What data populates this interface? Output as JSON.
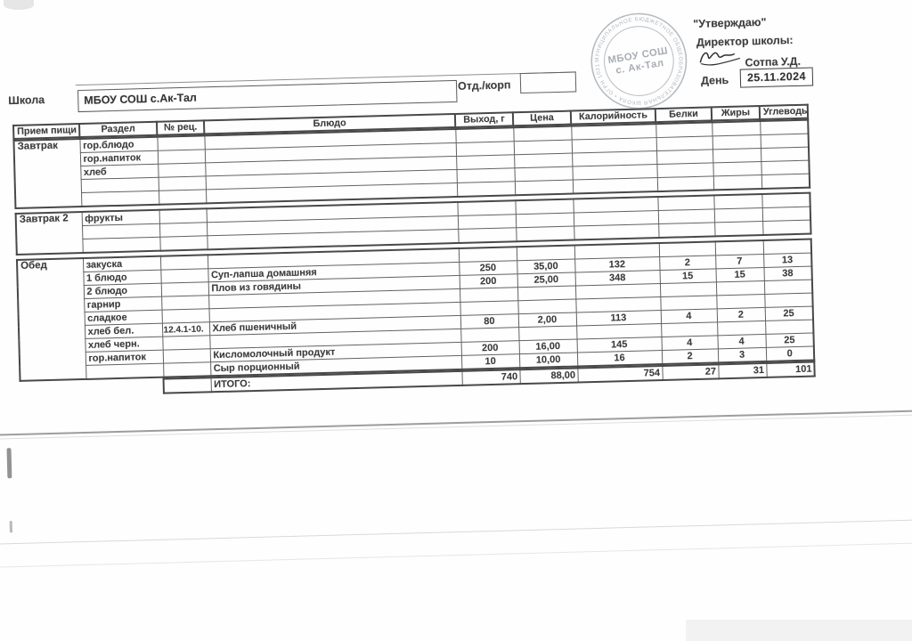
{
  "stamp": {
    "ring_text": "МУНИЦИПАЛЬНОЕ БЮДЖЕТНОЕ ОБЩЕОБРАЗОВАТЕЛЬНАЯ ШКОЛА • ОГРН 1021790098220 • ТЫВА",
    "center_line1": "МБОУ СОШ",
    "center_line2": "с. Ак-Тал"
  },
  "approval": {
    "approve_label": "\"Утверждаю\"",
    "director_label": "Директор школы:",
    "signer_name": "Сотпа У.Д.",
    "day_label": "День",
    "date_value": "25.11.2024"
  },
  "form": {
    "school_label": "Школа",
    "school_value": "МБОУ СОШ с.Ак-Тал",
    "dept_label": "Отд./корп",
    "dept_value": ""
  },
  "table": {
    "headers": [
      "Прием пищи",
      "Раздел",
      "№ рец.",
      "Блюдо",
      "Выход, г",
      "Цена",
      "Калорийность",
      "Белки",
      "Жиры",
      "Углеводы"
    ],
    "sections": [
      {
        "meal": "Завтрак",
        "rows": [
          [
            "гор.блюдо",
            "",
            "",
            "",
            "",
            "",
            "",
            "",
            ""
          ],
          [
            "гор.напиток",
            "",
            "",
            "",
            "",
            "",
            "",
            "",
            ""
          ],
          [
            "хлеб",
            "",
            "",
            "",
            "",
            "",
            "",
            "",
            ""
          ],
          [
            "",
            "",
            "",
            "",
            "",
            "",
            "",
            "",
            ""
          ],
          [
            "",
            "",
            "",
            "",
            "",
            "",
            "",
            "",
            ""
          ]
        ]
      },
      {
        "meal": "Завтрак 2",
        "rows": [
          [
            "фрукты",
            "",
            "",
            "",
            "",
            "",
            "",
            "",
            ""
          ],
          [
            "",
            "",
            "",
            "",
            "",
            "",
            "",
            "",
            ""
          ],
          [
            "",
            "",
            "",
            "",
            "",
            "",
            "",
            "",
            ""
          ]
        ]
      },
      {
        "meal": "Обед",
        "rows": [
          [
            "закуска",
            "",
            "",
            "",
            "",
            "",
            "",
            "",
            ""
          ],
          [
            "1 блюдо",
            "",
            "Суп-лапша домашняя",
            "250",
            "35,00",
            "132",
            "2",
            "7",
            "13"
          ],
          [
            "2 блюдо",
            "",
            "Плов из говядины",
            "200",
            "25,00",
            "348",
            "15",
            "15",
            "38"
          ],
          [
            "гарнир",
            "",
            "",
            "",
            "",
            "",
            "",
            "",
            ""
          ],
          [
            "сладкое",
            "",
            "",
            "",
            "",
            "",
            "",
            "",
            ""
          ],
          [
            "хлеб бел.",
            "12.4.1-10.",
            "Хлеб пшеничный",
            "80",
            "2,00",
            "113",
            "4",
            "2",
            "25"
          ],
          [
            "хлеб черн.",
            "",
            "",
            "",
            "",
            "",
            "",
            "",
            ""
          ],
          [
            "гор.напиток",
            "",
            "Кисломолочный продукт",
            "200",
            "16,00",
            "145",
            "4",
            "4",
            "25"
          ],
          [
            "",
            "",
            "Сыр порционный",
            "10",
            "10,00",
            "16",
            "2",
            "3",
            "0"
          ]
        ]
      }
    ],
    "total": {
      "label": "ИТОГО:",
      "values": [
        "740",
        "88,00",
        "754",
        "27",
        "31",
        "101"
      ]
    }
  }
}
